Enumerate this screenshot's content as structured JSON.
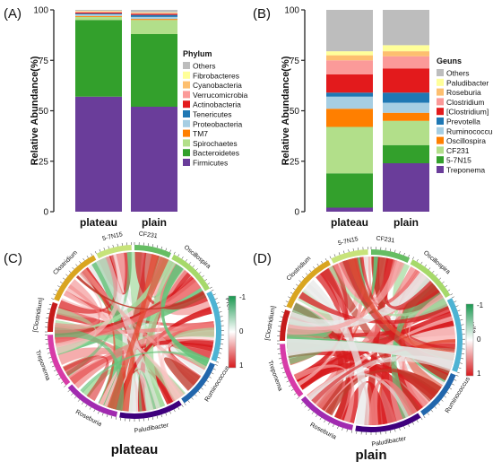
{
  "panel_labels": [
    "(A)",
    "(B)",
    "(C)",
    "(D)"
  ],
  "chart_data": [
    {
      "type": "bar",
      "panel": "(A)",
      "stacked": true,
      "categories": [
        "plateau",
        "plain"
      ],
      "ylabel": "Relative Abundance(%)",
      "ylim": [
        0,
        100
      ],
      "yticks": [
        0,
        25,
        50,
        75,
        100
      ],
      "legend_title": "Phylum",
      "legend_position": "right",
      "series": [
        {
          "name": "Firmicutes",
          "color": "#6a3d9a",
          "values": [
            57,
            52
          ]
        },
        {
          "name": "Bacteroidetes",
          "color": "#33a02c",
          "values": [
            38,
            36
          ]
        },
        {
          "name": "Spirochaetes",
          "color": "#b2df8a",
          "values": [
            1.5,
            7
          ]
        },
        {
          "name": "TM7",
          "color": "#ff7f00",
          "values": [
            0.5,
            0.5
          ]
        },
        {
          "name": "Proteobacteria",
          "color": "#a6cee3",
          "values": [
            0.8,
            1
          ]
        },
        {
          "name": "Tenericutes",
          "color": "#1f78b4",
          "values": [
            0.4,
            1
          ]
        },
        {
          "name": "Actinobacteria",
          "color": "#e31a1c",
          "values": [
            0.5,
            0.5
          ]
        },
        {
          "name": "Verrucomicrobia",
          "color": "#fb9a99",
          "values": [
            0.3,
            0.3
          ]
        },
        {
          "name": "Cyanobacteria",
          "color": "#fdbf6f",
          "values": [
            0.3,
            0.3
          ]
        },
        {
          "name": "Fibrobacteres",
          "color": "#ffff99",
          "values": [
            0.2,
            0.2
          ]
        },
        {
          "name": "Others",
          "color": "#bdbdbd",
          "values": [
            0.5,
            1.2
          ]
        }
      ]
    },
    {
      "type": "bar",
      "panel": "(B)",
      "stacked": true,
      "categories": [
        "plateau",
        "plain"
      ],
      "ylabel": "Relative Abundance(%)",
      "ylim": [
        0,
        100
      ],
      "yticks": [
        0,
        25,
        50,
        75,
        100
      ],
      "legend_title": "Geuns",
      "legend_position": "right",
      "series": [
        {
          "name": "Treponema",
          "color": "#6a3d9a",
          "values": [
            2,
            24
          ]
        },
        {
          "name": "5-7N15",
          "color": "#33a02c",
          "values": [
            17,
            9
          ]
        },
        {
          "name": "CF231",
          "color": "#b2df8a",
          "values": [
            23,
            12
          ]
        },
        {
          "name": "Oscillospira",
          "color": "#ff7f00",
          "values": [
            9,
            4
          ]
        },
        {
          "name": "Ruminococcus",
          "color": "#a6cee3",
          "values": [
            6,
            5
          ]
        },
        {
          "name": "Prevotella",
          "color": "#1f78b4",
          "values": [
            2,
            5
          ]
        },
        {
          "name": "[Clostridium]",
          "color": "#e31a1c",
          "values": [
            9,
            12
          ]
        },
        {
          "name": "Clostridium",
          "color": "#fb9a99",
          "values": [
            7,
            6
          ]
        },
        {
          "name": "Roseburia",
          "color": "#fdbf6f",
          "values": [
            2.5,
            2.5
          ]
        },
        {
          "name": "Paludibacter",
          "color": "#ffff99",
          "values": [
            2,
            3
          ]
        },
        {
          "name": "Others",
          "color": "#bdbdbd",
          "values": [
            20.5,
            17.5
          ]
        }
      ]
    }
  ],
  "chord_panels": [
    {
      "panel": "(C)",
      "caption": "plateau",
      "genera": [
        "CF231",
        "Oscillospira",
        "Prevotella",
        "Ruminococcus",
        "Paludibacter",
        "Roseburia",
        "Treponema",
        "[Clostridium]",
        "Clostridium",
        "5-7N15"
      ],
      "colorbar_ticks": [
        "-1",
        "0",
        "1"
      ]
    },
    {
      "panel": "(D)",
      "caption": "plain",
      "genera": [
        "CF231",
        "Oscillospira",
        "Prevotella",
        "Ruminococcus",
        "Paludibacter",
        "Roseburia",
        "Treponema",
        "[Clostridium]",
        "Clostridium",
        "5-7N15"
      ],
      "colorbar_ticks": [
        "-1",
        "0",
        "1"
      ]
    }
  ]
}
